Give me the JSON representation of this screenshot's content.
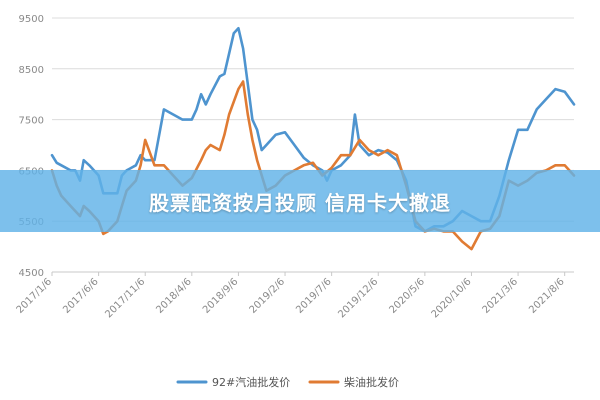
{
  "banner": {
    "text": "股票配资按月投顾 信用卡大撤退"
  },
  "colors": {
    "series_1": "#4e94cf",
    "series_2": "#e07b33",
    "grid": "#dcdcdc",
    "banner": "#60b2e8"
  },
  "chart_data": {
    "type": "line",
    "title": "",
    "xlabel": "",
    "ylabel": "",
    "ylim": [
      4500,
      9500
    ],
    "yticks": [
      4500,
      5500,
      6500,
      7500,
      8500,
      9500
    ],
    "xlim": [
      0,
      56
    ],
    "xticks": [
      {
        "label": "2017/1/6",
        "x": 0
      },
      {
        "label": "2017/6/6",
        "x": 5
      },
      {
        "label": "2017/11/6",
        "x": 10
      },
      {
        "label": "2018/4/6",
        "x": 15
      },
      {
        "label": "2018/9/6",
        "x": 20
      },
      {
        "label": "2019/2/6",
        "x": 25
      },
      {
        "label": "2019/7/6",
        "x": 30
      },
      {
        "label": "2019/12/6",
        "x": 35
      },
      {
        "label": "2020/5/6",
        "x": 40
      },
      {
        "label": "2020/10/6",
        "x": 45
      },
      {
        "label": "2021/3/6",
        "x": 50
      },
      {
        "label": "2021/8/6",
        "x": 55
      }
    ],
    "grid": "horizontal",
    "legend": "bottom",
    "series": [
      {
        "name": "92#汽油批发价",
        "color": "#4e94cf",
        "points": [
          [
            0,
            6800
          ],
          [
            0.5,
            6650
          ],
          [
            1,
            6600
          ],
          [
            2,
            6500
          ],
          [
            2.5,
            6500
          ],
          [
            3,
            6300
          ],
          [
            3.4,
            6700
          ],
          [
            4,
            6600
          ],
          [
            5,
            6400
          ],
          [
            5.5,
            6050
          ],
          [
            6,
            6050
          ],
          [
            7,
            6050
          ],
          [
            7.5,
            6400
          ],
          [
            8,
            6500
          ],
          [
            9,
            6600
          ],
          [
            9.5,
            6800
          ],
          [
            10,
            6700
          ],
          [
            11,
            6700
          ],
          [
            12,
            7700
          ],
          [
            13,
            7600
          ],
          [
            14,
            7500
          ],
          [
            15,
            7500
          ],
          [
            15.5,
            7700
          ],
          [
            16,
            8000
          ],
          [
            16.5,
            7800
          ],
          [
            17,
            8000
          ],
          [
            18,
            8350
          ],
          [
            18.5,
            8400
          ],
          [
            19,
            8800
          ],
          [
            19.5,
            9200
          ],
          [
            20,
            9300
          ],
          [
            20.5,
            8900
          ],
          [
            21,
            8200
          ],
          [
            21.5,
            7500
          ],
          [
            22,
            7300
          ],
          [
            22.5,
            6900
          ],
          [
            23,
            7000
          ],
          [
            24,
            7200
          ],
          [
            25,
            7250
          ],
          [
            26,
            7000
          ],
          [
            27,
            6750
          ],
          [
            28,
            6600
          ],
          [
            29,
            6500
          ],
          [
            29.5,
            6300
          ],
          [
            30,
            6500
          ],
          [
            31,
            6600
          ],
          [
            32,
            6800
          ],
          [
            32.5,
            7600
          ],
          [
            33,
            7000
          ],
          [
            34,
            6800
          ],
          [
            35,
            6900
          ],
          [
            36,
            6850
          ],
          [
            37,
            6700
          ],
          [
            38,
            6300
          ],
          [
            39,
            5400
          ],
          [
            40,
            5300
          ],
          [
            41,
            5400
          ],
          [
            42,
            5400
          ],
          [
            43,
            5500
          ],
          [
            44,
            5700
          ],
          [
            45,
            5600
          ],
          [
            46,
            5500
          ],
          [
            47,
            5500
          ],
          [
            48,
            6000
          ],
          [
            49,
            6700
          ],
          [
            50,
            7300
          ],
          [
            51,
            7300
          ],
          [
            52,
            7700
          ],
          [
            53,
            7900
          ],
          [
            54,
            8100
          ],
          [
            55,
            8050
          ],
          [
            56,
            7800
          ]
        ]
      },
      {
        "name": "柴油批发价",
        "color": "#e07b33",
        "points": [
          [
            0,
            6500
          ],
          [
            0.5,
            6200
          ],
          [
            1,
            6000
          ],
          [
            2,
            5800
          ],
          [
            3,
            5600
          ],
          [
            3.4,
            5800
          ],
          [
            4,
            5700
          ],
          [
            5,
            5500
          ],
          [
            5.5,
            5250
          ],
          [
            6,
            5300
          ],
          [
            7,
            5500
          ],
          [
            7.5,
            5800
          ],
          [
            8,
            6100
          ],
          [
            9,
            6300
          ],
          [
            9.5,
            6600
          ],
          [
            10,
            7100
          ],
          [
            11,
            6600
          ],
          [
            12,
            6600
          ],
          [
            13,
            6400
          ],
          [
            14,
            6200
          ],
          [
            15,
            6350
          ],
          [
            16,
            6700
          ],
          [
            16.5,
            6900
          ],
          [
            17,
            7000
          ],
          [
            18,
            6900
          ],
          [
            18.5,
            7200
          ],
          [
            19,
            7600
          ],
          [
            20,
            8100
          ],
          [
            20.5,
            8250
          ],
          [
            21,
            7600
          ],
          [
            21.5,
            7100
          ],
          [
            22,
            6700
          ],
          [
            23,
            6100
          ],
          [
            24,
            6200
          ],
          [
            25,
            6400
          ],
          [
            26,
            6500
          ],
          [
            27,
            6600
          ],
          [
            28,
            6650
          ],
          [
            29,
            6400
          ],
          [
            30,
            6550
          ],
          [
            31,
            6800
          ],
          [
            32,
            6800
          ],
          [
            33,
            7100
          ],
          [
            34,
            6900
          ],
          [
            35,
            6800
          ],
          [
            36,
            6900
          ],
          [
            37,
            6800
          ],
          [
            38,
            6200
          ],
          [
            39,
            5500
          ],
          [
            40,
            5300
          ],
          [
            41,
            5350
          ],
          [
            42,
            5300
          ],
          [
            43,
            5300
          ],
          [
            44,
            5100
          ],
          [
            45,
            4950
          ],
          [
            46,
            5300
          ],
          [
            47,
            5350
          ],
          [
            48,
            5600
          ],
          [
            49,
            6300
          ],
          [
            50,
            6200
          ],
          [
            51,
            6300
          ],
          [
            52,
            6450
          ],
          [
            53,
            6500
          ],
          [
            54,
            6600
          ],
          [
            55,
            6600
          ],
          [
            56,
            6400
          ]
        ]
      }
    ]
  }
}
